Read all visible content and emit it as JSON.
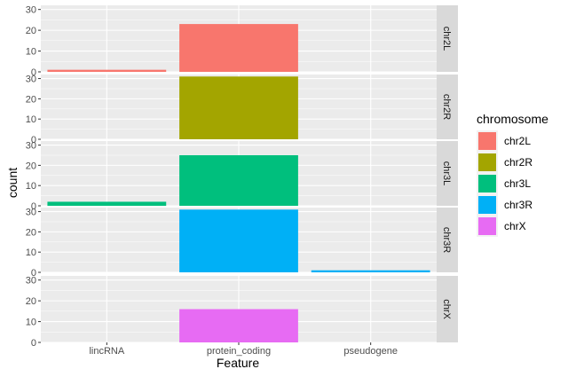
{
  "chart_data": {
    "type": "bar",
    "facet_by": "chromosome",
    "xlabel": "Feature",
    "ylabel": "count",
    "ylim": [
      0,
      32
    ],
    "yticks": [
      0,
      10,
      20,
      30
    ],
    "categories": [
      "lincRNA",
      "protein_coding",
      "pseudogene"
    ],
    "grid": true,
    "legend": {
      "title": "chromosome",
      "position": "right"
    },
    "series": [
      {
        "name": "chr2L",
        "color": "#F8766D",
        "values": [
          1,
          23,
          0
        ]
      },
      {
        "name": "chr2R",
        "color": "#A3A500",
        "values": [
          0,
          31,
          0
        ]
      },
      {
        "name": "chr3L",
        "color": "#00BF7D",
        "values": [
          2,
          25,
          0
        ]
      },
      {
        "name": "chr3R",
        "color": "#00B0F6",
        "values": [
          0,
          31,
          1
        ]
      },
      {
        "name": "chrX",
        "color": "#E76BF3",
        "values": [
          0,
          16,
          0
        ]
      }
    ]
  }
}
